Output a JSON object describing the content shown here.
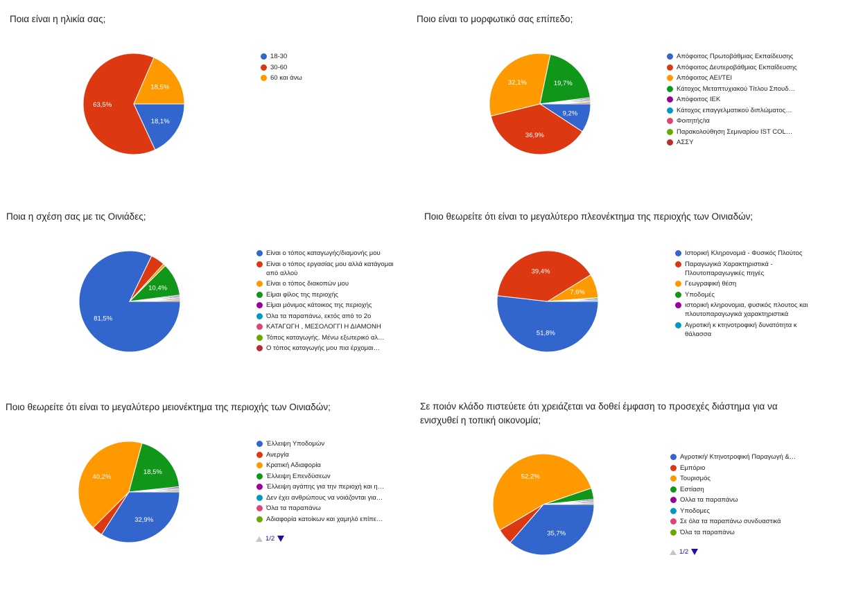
{
  "colors": {
    "blue": "#3366cc",
    "red": "#dc3912",
    "orange": "#ff9900",
    "green": "#109618",
    "purple": "#990099",
    "teal": "#0099c6",
    "pink": "#dd4477",
    "lime": "#66aa00",
    "darkred": "#b82e2e"
  },
  "chart_data": [
    {
      "type": "pie",
      "title": "Ποια είναι η ηλικία σας;",
      "slices": [
        {
          "label": "18-30",
          "value": 18.1,
          "display": "18,1%",
          "color": "#3366cc"
        },
        {
          "label": "30-60",
          "value": 63.5,
          "display": "63,5%",
          "color": "#dc3912"
        },
        {
          "label": "60 και άνω",
          "value": 18.5,
          "display": "18,5%",
          "color": "#ff9900"
        }
      ]
    },
    {
      "type": "pie",
      "title": "Ποιο είναι το μορφωτικό σας επίπεδο;",
      "slices": [
        {
          "label": "Απόφοιτος Πρωτοβάθμιας Εκπαίδευσης",
          "value": 9.2,
          "display": "9,2%",
          "color": "#3366cc"
        },
        {
          "label": "Απόφοιτος Δευτεροβάθμιας Εκπαίδευσης",
          "value": 36.9,
          "display": "36,9%",
          "color": "#dc3912"
        },
        {
          "label": "Απόφοιτος ΑΕΙ/ΤΕΙ",
          "value": 32.1,
          "display": "32,1%",
          "color": "#ff9900"
        },
        {
          "label": "Κάτοχος Μεταπτυχιακού Τίτλου Σπουδ…",
          "value": 19.7,
          "display": "19,7%",
          "color": "#109618"
        },
        {
          "label": "Απόφοιτος ΙΕΚ",
          "value": 0.4,
          "display": "",
          "color": "#990099"
        },
        {
          "label": "Κάτοχος επαγγελματικού διπλώματος…",
          "value": 0.4,
          "display": "",
          "color": "#0099c6"
        },
        {
          "label": "Φοιτητής/ια",
          "value": 0.4,
          "display": "",
          "color": "#dd4477"
        },
        {
          "label": "Παρακολούθηση Σεμιναρίου IST COL…",
          "value": 0.4,
          "display": "",
          "color": "#66aa00"
        },
        {
          "label": "ΑΣΣΥ",
          "value": 0.4,
          "display": "",
          "color": "#b82e2e"
        }
      ]
    },
    {
      "type": "pie",
      "title": "Ποια η σχέση σας με τις Οινιάδες;",
      "slices": [
        {
          "label": "Είναι ο τόπος καταγωγής/διαμονής μου",
          "value": 81.5,
          "display": "81,5%",
          "color": "#3366cc"
        },
        {
          "label": "Είναι ο τόπος εργασίας μου αλλά κατάγομαι από αλλού",
          "value": 4.5,
          "display": "",
          "color": "#dc3912"
        },
        {
          "label": "Είναι ο τόπος διακοπών μου",
          "value": 0.8,
          "display": "",
          "color": "#ff9900"
        },
        {
          "label": "Είμαι φίλος της περιοχής",
          "value": 10.4,
          "display": "10,4%",
          "color": "#109618"
        },
        {
          "label": "Είμαι μόνιμος κάτοικος της περιοχής",
          "value": 0.4,
          "display": "",
          "color": "#990099"
        },
        {
          "label": "Όλα τα παραπάνω, εκτός από το 2ο",
          "value": 0.4,
          "display": "",
          "color": "#0099c6"
        },
        {
          "label": "ΚΑΤΑΓΩΓΗ , ΜΕΣΟΛΟΓΓΙ Η ΔΙΑΜΟΝΗ",
          "value": 0.4,
          "display": "",
          "color": "#dd4477"
        },
        {
          "label": "Τόπος καταγωγής. Μένω εξωτερικό αλ…",
          "value": 0.4,
          "display": "",
          "color": "#66aa00"
        },
        {
          "label": "Ο τόπος καταγωγής μου πια έρχομαι…",
          "value": 0.4,
          "display": "",
          "color": "#b82e2e"
        }
      ]
    },
    {
      "type": "pie",
      "title": "Ποιο θεωρείτε ότι είναι το μεγαλύτερο πλεονέκτημα της περιοχής των Οινιαδών;",
      "slices": [
        {
          "label": "Ιστορική Κληρονομιά - Φυσικός Πλούτος",
          "value": 51.8,
          "display": "51,8%",
          "color": "#3366cc"
        },
        {
          "label": "Παραγωγικά Χαρακτηριστικά - Πλουτοπαραγωγικές πηγές",
          "value": 39.4,
          "display": "39,4%",
          "color": "#dc3912"
        },
        {
          "label": "Γεωγραφική θέση",
          "value": 7.6,
          "display": "7,6%",
          "color": "#ff9900"
        },
        {
          "label": "Υποδομές",
          "value": 0.4,
          "display": "",
          "color": "#109618"
        },
        {
          "label": "ιστορική κληρονομια, φυσικός πλουτος και πλουτοπαραγωγικά χαρακτηριστικά",
          "value": 0.4,
          "display": "",
          "color": "#990099"
        },
        {
          "label": "Αγροτική κ κτηνοτροφική δυνατότητα κ θάλασσα",
          "value": 0.4,
          "display": "",
          "color": "#0099c6"
        }
      ]
    },
    {
      "type": "pie",
      "title": "Ποιο θεωρείτε ότι είναι το μεγαλύτερο μειονέκτημα της περιοχής των Οινιαδών;",
      "pager": "1/2",
      "slices": [
        {
          "label": "Έλλειψη Υποδομών",
          "value": 32.9,
          "display": "32,9%",
          "color": "#3366cc"
        },
        {
          "label": "Ανεργία",
          "value": 3.3,
          "display": "",
          "color": "#dc3912"
        },
        {
          "label": "Κρατική Αδιαφορία",
          "value": 40.2,
          "display": "40,2%",
          "color": "#ff9900"
        },
        {
          "label": "Έλλειψη Επενδύσεων",
          "value": 18.5,
          "display": "18,5%",
          "color": "#109618"
        },
        {
          "label": "Έλλειψη αγάπης για την περιοχή και η…",
          "value": 0.4,
          "display": "",
          "color": "#990099"
        },
        {
          "label": "Δεν έχει ανθρώπους να νοιάζονται για…",
          "value": 0.4,
          "display": "",
          "color": "#0099c6"
        },
        {
          "label": "Όλα τα παραπάνω",
          "value": 0.4,
          "display": "",
          "color": "#dd4477"
        },
        {
          "label": "Αδιαφορία κατοίκων και χαμηλό επίπε…",
          "value": 0.4,
          "display": "",
          "color": "#66aa00"
        }
      ]
    },
    {
      "type": "pie",
      "title": "Σε ποιόν κλάδο πιστεύετε ότι χρειάζεται να δοθεί έμφαση το προσεχές διάστημα για να ενισχυθεί η τοπική οικονομία;",
      "pager": "1/2",
      "slices": [
        {
          "label": "Αγροτική/ Κτηνοτροφική Παραγωγή &…",
          "value": 35.7,
          "display": "35,7%",
          "color": "#3366cc"
        },
        {
          "label": "Εμπόριο",
          "value": 5.0,
          "display": "",
          "color": "#dc3912"
        },
        {
          "label": "Τουρισμός",
          "value": 52.2,
          "display": "52,2%",
          "color": "#ff9900"
        },
        {
          "label": "Εστίαση",
          "value": 3.5,
          "display": "",
          "color": "#109618"
        },
        {
          "label": "Ολλα τα παραπάνω",
          "value": 0.4,
          "display": "",
          "color": "#990099"
        },
        {
          "label": "Υποδομες",
          "value": 0.4,
          "display": "",
          "color": "#0099c6"
        },
        {
          "label": "Σε όλα τα παραπάνω συνδυαστικά",
          "value": 0.4,
          "display": "",
          "color": "#dd4477"
        },
        {
          "label": "Όλα τα παραπάνω",
          "value": 0.4,
          "display": "",
          "color": "#66aa00"
        }
      ]
    }
  ]
}
